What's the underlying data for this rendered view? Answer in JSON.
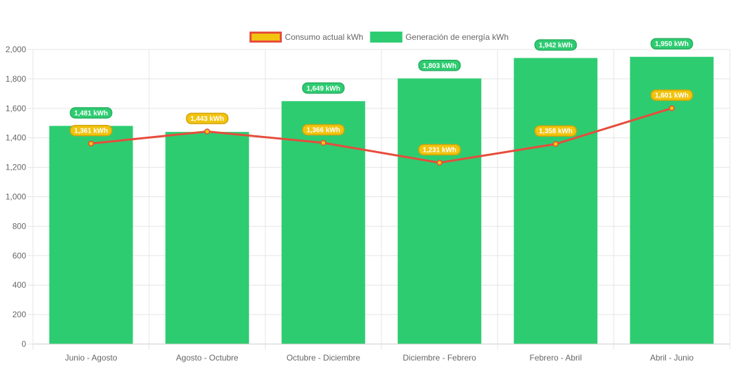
{
  "chart_data": {
    "type": "bar",
    "categories": [
      "Junio - Agosto",
      "Agosto - Octubre",
      "Octubre - Diciembre",
      "Diciembre - Febrero",
      "Febrero - Abril",
      "Abril - Junio"
    ],
    "series": [
      {
        "name": "Generación de energía kWh",
        "type": "bar",
        "values": [
          1481,
          1440,
          1649,
          1803,
          1942,
          1950
        ],
        "labels": [
          "1,481 kWh",
          "",
          "1,649 kWh",
          "1,803 kWh",
          "1,942 kWh",
          "1,950 kWh"
        ],
        "color": "#2ecc71"
      },
      {
        "name": "Consumo actual kWh",
        "type": "line",
        "values": [
          1361,
          1443,
          1366,
          1231,
          1358,
          1601
        ],
        "labels": [
          "1,361 kWh",
          "1,443 kWh",
          "1,366 kWh",
          "1,231 kWh",
          "1,358 kWh",
          "1,601 kWh"
        ],
        "color": "#e74c3c",
        "marker_fill": "#f1c40f"
      }
    ],
    "ylim": [
      0,
      2000
    ],
    "yticks": [
      0,
      200,
      400,
      600,
      800,
      1000,
      1200,
      1400,
      1600,
      1800,
      2000
    ],
    "ytick_labels": [
      "0",
      "200",
      "400",
      "600",
      "800",
      "1,000",
      "1,200",
      "1,400",
      "1,600",
      "1,800",
      "2,000"
    ],
    "grid": true,
    "legend_position": "top-center",
    "legend": [
      {
        "label": "Consumo actual kWh",
        "fill": "#f1c40f",
        "stroke": "#e74c3c"
      },
      {
        "label": "Generación de energía kWh",
        "fill": "#2ecc71",
        "stroke": "#2ecc71"
      }
    ]
  }
}
